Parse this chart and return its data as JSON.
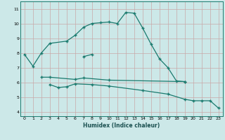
{
  "xlabel": "Humidex (Indice chaleur)",
  "bg_color": "#cce8e8",
  "grid_color": "#b8d8d8",
  "line_color": "#1a7a6e",
  "xlim": [
    -0.5,
    23.5
  ],
  "ylim": [
    3.7,
    11.5
  ],
  "yticks": [
    4,
    5,
    6,
    7,
    8,
    9,
    10,
    11
  ],
  "xticks": [
    0,
    1,
    2,
    3,
    4,
    5,
    6,
    7,
    8,
    9,
    10,
    11,
    12,
    13,
    14,
    15,
    16,
    17,
    18,
    19,
    20,
    21,
    22,
    23
  ],
  "line1_x": [
    0,
    1,
    2,
    3,
    5,
    6,
    7,
    8,
    9,
    10,
    11,
    12,
    13,
    14,
    15,
    16,
    17,
    18,
    19
  ],
  "line1_y": [
    7.9,
    7.1,
    8.0,
    8.65,
    8.8,
    9.2,
    9.75,
    10.0,
    10.05,
    10.1,
    10.0,
    10.75,
    10.7,
    9.7,
    8.6,
    7.6,
    7.0,
    6.1,
    6.05
  ],
  "line2_x": [
    2,
    3,
    6,
    7,
    10,
    19
  ],
  "line2_y": [
    6.35,
    6.35,
    6.2,
    6.3,
    6.15,
    6.05
  ],
  "line3_x": [
    3,
    4,
    5,
    6,
    8,
    10,
    14,
    17,
    19,
    20,
    21,
    22,
    23
  ],
  "line3_y": [
    5.85,
    5.65,
    5.7,
    5.9,
    5.85,
    5.75,
    5.45,
    5.2,
    4.85,
    4.75,
    4.75,
    4.75,
    4.25
  ],
  "line4_x": [
    7,
    8
  ],
  "line4_y": [
    7.75,
    7.9
  ]
}
